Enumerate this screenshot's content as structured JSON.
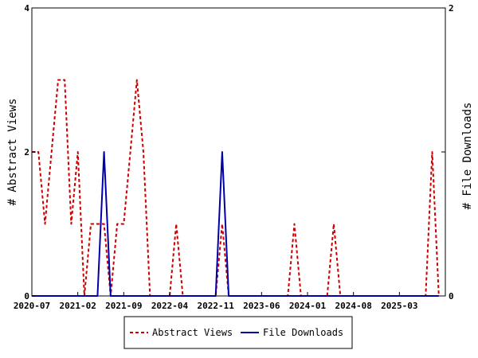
{
  "chart_data": {
    "type": "line",
    "x_tick_labels": [
      "2020-07",
      "2021-02",
      "2021-09",
      "2022-04",
      "2022-11",
      "2023-06",
      "2024-01",
      "2024-08",
      "2025-03"
    ],
    "ylabel_left": "# Abstract Views",
    "ylabel_right": "# File Downloads",
    "y_left_ticks": [
      "0",
      "2",
      "4"
    ],
    "y_right_ticks": [
      "0",
      "1",
      "2"
    ],
    "ylim_left": [
      0,
      4
    ],
    "ylim_right": [
      0,
      2
    ],
    "xlim": [
      "2020-07",
      "2025-10"
    ],
    "legend_position": "bottom-center",
    "grid": false,
    "series": [
      {
        "name": "Abstract Views",
        "axis": "left",
        "color": "#cc0000",
        "style": "dashed",
        "points": [
          [
            "2020-07",
            2
          ],
          [
            "2020-08",
            2
          ],
          [
            "2020-09",
            1
          ],
          [
            "2020-10",
            2
          ],
          [
            "2020-11",
            3
          ],
          [
            "2020-12",
            3
          ],
          [
            "2021-01",
            1
          ],
          [
            "2021-02",
            2
          ],
          [
            "2021-03",
            0
          ],
          [
            "2021-04",
            1
          ],
          [
            "2021-05",
            1
          ],
          [
            "2021-06",
            1
          ],
          [
            "2021-07",
            0
          ],
          [
            "2021-08",
            1
          ],
          [
            "2021-09",
            1
          ],
          [
            "2021-10",
            2
          ],
          [
            "2021-11",
            3
          ],
          [
            "2021-12",
            2
          ],
          [
            "2022-01",
            0
          ],
          [
            "2022-02",
            0
          ],
          [
            "2022-03",
            0
          ],
          [
            "2022-04",
            0
          ],
          [
            "2022-05",
            1
          ],
          [
            "2022-06",
            0
          ],
          [
            "2022-07",
            0
          ],
          [
            "2022-08",
            0
          ],
          [
            "2022-09",
            0
          ],
          [
            "2022-10",
            0
          ],
          [
            "2022-11",
            0
          ],
          [
            "2022-12",
            1
          ],
          [
            "2023-01",
            0
          ],
          [
            "2023-02",
            0
          ],
          [
            "2023-03",
            0
          ],
          [
            "2023-04",
            0
          ],
          [
            "2023-05",
            0
          ],
          [
            "2023-06",
            0
          ],
          [
            "2023-07",
            0
          ],
          [
            "2023-08",
            0
          ],
          [
            "2023-09",
            0
          ],
          [
            "2023-10",
            0
          ],
          [
            "2023-11",
            1
          ],
          [
            "2023-12",
            0
          ],
          [
            "2024-01",
            0
          ],
          [
            "2024-02",
            0
          ],
          [
            "2024-03",
            0
          ],
          [
            "2024-04",
            0
          ],
          [
            "2024-05",
            1
          ],
          [
            "2024-06",
            0
          ],
          [
            "2024-07",
            0
          ],
          [
            "2024-08",
            0
          ],
          [
            "2024-09",
            0
          ],
          [
            "2024-10",
            0
          ],
          [
            "2024-11",
            0
          ],
          [
            "2024-12",
            0
          ],
          [
            "2025-01",
            0
          ],
          [
            "2025-02",
            0
          ],
          [
            "2025-03",
            0
          ],
          [
            "2025-04",
            0
          ],
          [
            "2025-05",
            0
          ],
          [
            "2025-06",
            0
          ],
          [
            "2025-07",
            0
          ],
          [
            "2025-08",
            2
          ],
          [
            "2025-09",
            0
          ]
        ]
      },
      {
        "name": "File Downloads",
        "axis": "right",
        "color": "#0000aa",
        "style": "solid",
        "points": [
          [
            "2020-07",
            0
          ],
          [
            "2020-08",
            0
          ],
          [
            "2020-09",
            0
          ],
          [
            "2020-10",
            0
          ],
          [
            "2020-11",
            0
          ],
          [
            "2020-12",
            0
          ],
          [
            "2021-01",
            0
          ],
          [
            "2021-02",
            0
          ],
          [
            "2021-03",
            0
          ],
          [
            "2021-04",
            0
          ],
          [
            "2021-05",
            0
          ],
          [
            "2021-06",
            1
          ],
          [
            "2021-07",
            0
          ],
          [
            "2021-08",
            0
          ],
          [
            "2021-09",
            0
          ],
          [
            "2021-10",
            0
          ],
          [
            "2021-11",
            0
          ],
          [
            "2021-12",
            0
          ],
          [
            "2022-01",
            0
          ],
          [
            "2022-02",
            0
          ],
          [
            "2022-03",
            0
          ],
          [
            "2022-04",
            0
          ],
          [
            "2022-05",
            0
          ],
          [
            "2022-06",
            0
          ],
          [
            "2022-07",
            0
          ],
          [
            "2022-08",
            0
          ],
          [
            "2022-09",
            0
          ],
          [
            "2022-10",
            0
          ],
          [
            "2022-11",
            0
          ],
          [
            "2022-12",
            1
          ],
          [
            "2023-01",
            0
          ],
          [
            "2023-02",
            0
          ],
          [
            "2023-03",
            0
          ],
          [
            "2023-04",
            0
          ],
          [
            "2023-05",
            0
          ],
          [
            "2023-06",
            0
          ],
          [
            "2023-07",
            0
          ],
          [
            "2023-08",
            0
          ],
          [
            "2023-09",
            0
          ],
          [
            "2023-10",
            0
          ],
          [
            "2023-11",
            0
          ],
          [
            "2023-12",
            0
          ],
          [
            "2024-01",
            0
          ],
          [
            "2024-02",
            0
          ],
          [
            "2024-03",
            0
          ],
          [
            "2024-04",
            0
          ],
          [
            "2024-05",
            0
          ],
          [
            "2024-06",
            0
          ],
          [
            "2024-07",
            0
          ],
          [
            "2024-08",
            0
          ],
          [
            "2024-09",
            0
          ],
          [
            "2024-10",
            0
          ],
          [
            "2024-11",
            0
          ],
          [
            "2024-12",
            0
          ],
          [
            "2025-01",
            0
          ],
          [
            "2025-02",
            0
          ],
          [
            "2025-03",
            0
          ],
          [
            "2025-04",
            0
          ],
          [
            "2025-05",
            0
          ],
          [
            "2025-06",
            0
          ],
          [
            "2025-07",
            0
          ],
          [
            "2025-08",
            0
          ],
          [
            "2025-09",
            0
          ]
        ]
      }
    ]
  }
}
